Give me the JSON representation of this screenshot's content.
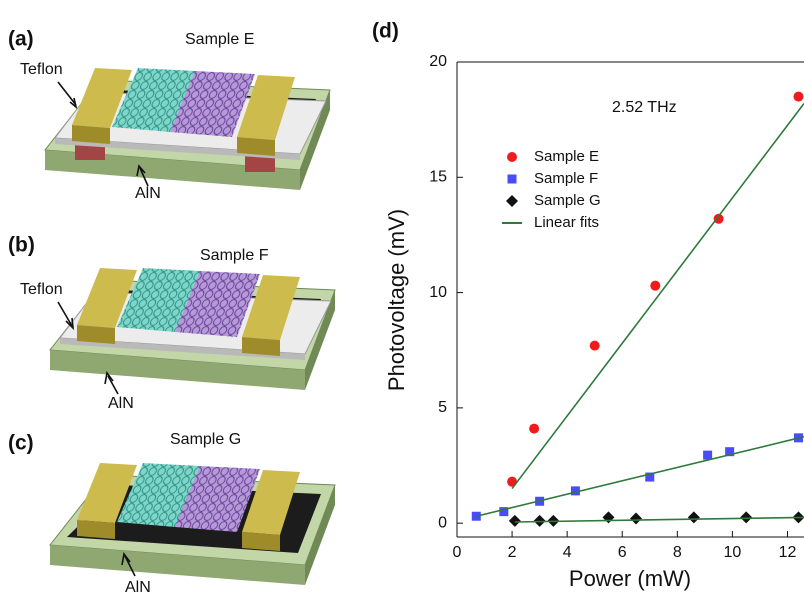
{
  "panels": [
    {
      "label": "(a)",
      "sample": "Sample E",
      "layers": [
        "Teflon",
        "AlN"
      ]
    },
    {
      "label": "(b)",
      "sample": "Sample F",
      "layers": [
        "Teflon",
        "AlN"
      ]
    },
    {
      "label": "(c)",
      "sample": "Sample G",
      "layers": [
        "AlN"
      ]
    }
  ],
  "chart_data": {
    "type": "scatter",
    "panel_label": "(d)",
    "annotation": "2.52 THz",
    "xlabel": "Power (mW)",
    "ylabel": "Photovoltage (mV)",
    "xlim": [
      0,
      12.6
    ],
    "ylim": [
      -0.6,
      20
    ],
    "xticks": [
      0,
      2,
      4,
      6,
      8,
      10,
      12
    ],
    "yticks": [
      0,
      5,
      10,
      15,
      20
    ],
    "legend": "upper left",
    "series": [
      {
        "name": "Sample E",
        "color": "#ee1c1c",
        "marker": "circle",
        "x": [
          2.0,
          2.8,
          5.0,
          7.2,
          9.5,
          12.4
        ],
        "values": [
          1.8,
          4.1,
          7.7,
          10.3,
          13.2,
          18.5
        ]
      },
      {
        "name": "Sample F",
        "color": "#4a4aff",
        "marker": "square",
        "x": [
          0.7,
          1.7,
          3.0,
          4.3,
          7.0,
          9.1,
          9.9,
          12.4
        ],
        "values": [
          0.3,
          0.5,
          0.95,
          1.4,
          2.0,
          2.95,
          3.1,
          3.7
        ]
      },
      {
        "name": "Sample G",
        "color": "#111111",
        "marker": "diamond",
        "x": [
          2.1,
          3.0,
          3.5,
          5.5,
          6.5,
          8.6,
          10.5,
          12.4
        ],
        "values": [
          0.1,
          0.1,
          0.1,
          0.25,
          0.2,
          0.25,
          0.25,
          0.25
        ]
      },
      {
        "name": "Linear fits",
        "color": "#2e7a3a",
        "marker": "line",
        "x": [
          2.0,
          12.6,
          null,
          0.7,
          12.6,
          null,
          2.1,
          12.6
        ],
        "values": [
          1.5,
          18.2,
          null,
          0.3,
          3.75,
          null,
          0.05,
          0.25
        ]
      }
    ]
  }
}
